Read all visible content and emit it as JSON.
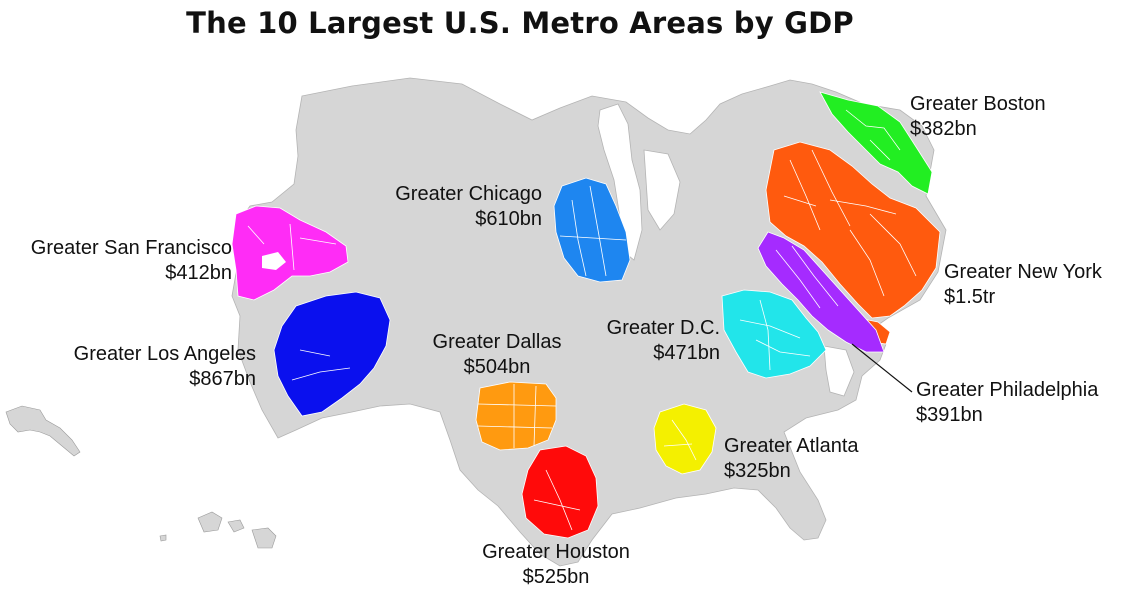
{
  "title": "The 10 Largest U.S. Metro Areas by GDP",
  "colors": {
    "land": "#d6d6d6",
    "boston": "#22ee22",
    "new_york": "#ff5a0e",
    "philadelphia": "#a52bff",
    "dc": "#22e5ea",
    "atlanta": "#f4f000",
    "houston": "#ff0a0a",
    "dallas": "#ff9a10",
    "chicago": "#1e86f0",
    "san_francisco": "#ff2cf6",
    "los_angeles": "#0a10ee"
  },
  "metros": [
    {
      "id": "boston",
      "name": "Greater Boston",
      "gdp": "$382bn"
    },
    {
      "id": "new_york",
      "name": "Greater New York",
      "gdp": "$1.5tr"
    },
    {
      "id": "philadelphia",
      "name": "Greater Philadelphia",
      "gdp": "$391bn"
    },
    {
      "id": "dc",
      "name": "Greater D.C.",
      "gdp": "$471bn"
    },
    {
      "id": "atlanta",
      "name": "Greater Atlanta",
      "gdp": "$325bn"
    },
    {
      "id": "houston",
      "name": "Greater Houston",
      "gdp": "$525bn"
    },
    {
      "id": "dallas",
      "name": "Greater Dallas",
      "gdp": "$504bn"
    },
    {
      "id": "chicago",
      "name": "Greater Chicago",
      "gdp": "$610bn"
    },
    {
      "id": "san_francisco",
      "name": "Greater San Francisco",
      "gdp": "$412bn"
    },
    {
      "id": "los_angeles",
      "name": "Greater Los Angeles",
      "gdp": "$867bn"
    }
  ]
}
